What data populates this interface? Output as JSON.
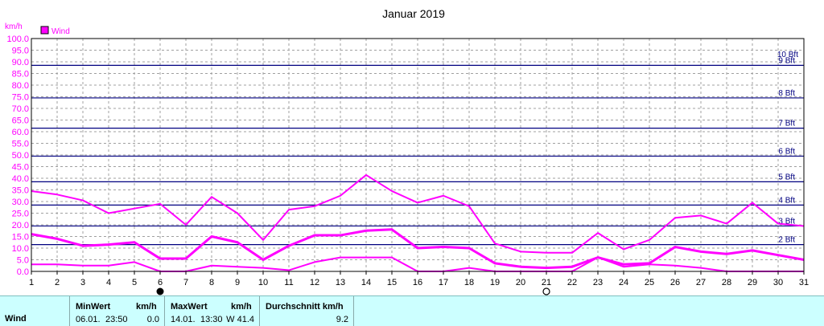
{
  "chart_data": {
    "type": "line",
    "title": "Januar 2019",
    "ylabel": "km/h",
    "legend": "Wind",
    "legend_color": "#ff00ff",
    "ylim": [
      0,
      100
    ],
    "y_ticks": [
      "0.0",
      "5.0",
      "10.0",
      "15.0",
      "20.0",
      "25.0",
      "30.0",
      "35.0",
      "40.0",
      "45.0",
      "50.0",
      "55.0",
      "60.0",
      "65.0",
      "70.0",
      "75.0",
      "80.0",
      "85.0",
      "90.0",
      "95.0",
      "100.0"
    ],
    "x": [
      1,
      2,
      3,
      4,
      5,
      6,
      7,
      8,
      9,
      10,
      11,
      12,
      13,
      14,
      15,
      16,
      17,
      18,
      19,
      20,
      21,
      22,
      23,
      24,
      25,
      26,
      27,
      28,
      29,
      30,
      31
    ],
    "grid": true,
    "beaufort_lines": [
      {
        "label": "2 Bft",
        "value": 11.5
      },
      {
        "label": "3 Bft",
        "value": 19.5
      },
      {
        "label": "4 Bft",
        "value": 28.5
      },
      {
        "label": "5 Bft",
        "value": 38.5
      },
      {
        "label": "6 Bft",
        "value": 49.5
      },
      {
        "label": "7 Bft",
        "value": 61.5
      },
      {
        "label": "8 Bft",
        "value": 74.5
      },
      {
        "label": "9 Bft",
        "value": 88.5
      }
    ],
    "beaufort_labels_only": [
      {
        "label": "10 Bft",
        "value": 91
      }
    ],
    "series": [
      {
        "values": [
          34.5,
          33,
          30.5,
          25,
          27,
          29,
          20,
          32,
          25,
          13.5,
          26.5,
          28,
          32.5,
          41.4,
          34.5,
          29.5,
          32.5,
          28,
          12,
          8.5,
          8,
          8,
          16.5,
          9.5,
          13.5,
          23,
          24,
          20.5,
          29.5,
          20.5,
          19.5
        ]
      },
      {
        "values": [
          16,
          14,
          11,
          11.5,
          12.5,
          5.5,
          5.5,
          15,
          12.5,
          5,
          11,
          15.5,
          15.5,
          17.5,
          18,
          10,
          10.5,
          10,
          3.5,
          2,
          1.5,
          2,
          6,
          3,
          3.5,
          10.5,
          8.5,
          7.5,
          9,
          7,
          5
        ]
      },
      {
        "values": [
          3,
          3,
          2.5,
          2.5,
          4,
          0,
          0,
          2.5,
          2,
          1.5,
          0.5,
          4,
          6,
          6,
          6,
          0,
          0,
          1.5,
          0,
          0,
          0,
          0,
          6,
          2,
          3,
          2.5,
          1.5,
          0,
          0,
          0,
          0
        ]
      }
    ],
    "moon_markers": [
      {
        "day": 6,
        "phase": "new-moon"
      },
      {
        "day": 21,
        "phase": "full-moon"
      }
    ]
  },
  "stats": {
    "row_label": "Wind",
    "min_header": "MinWert",
    "min_unit": "km/h",
    "min_date": "06.01.",
    "min_time": "23:50",
    "min_value": "0.0",
    "max_header": "MaxWert",
    "max_unit": "km/h",
    "max_date": "14.01.",
    "max_time": "13:30",
    "max_value": "W 41.4",
    "avg_header": "Durchschnitt km/h",
    "avg_value": "9.2"
  }
}
